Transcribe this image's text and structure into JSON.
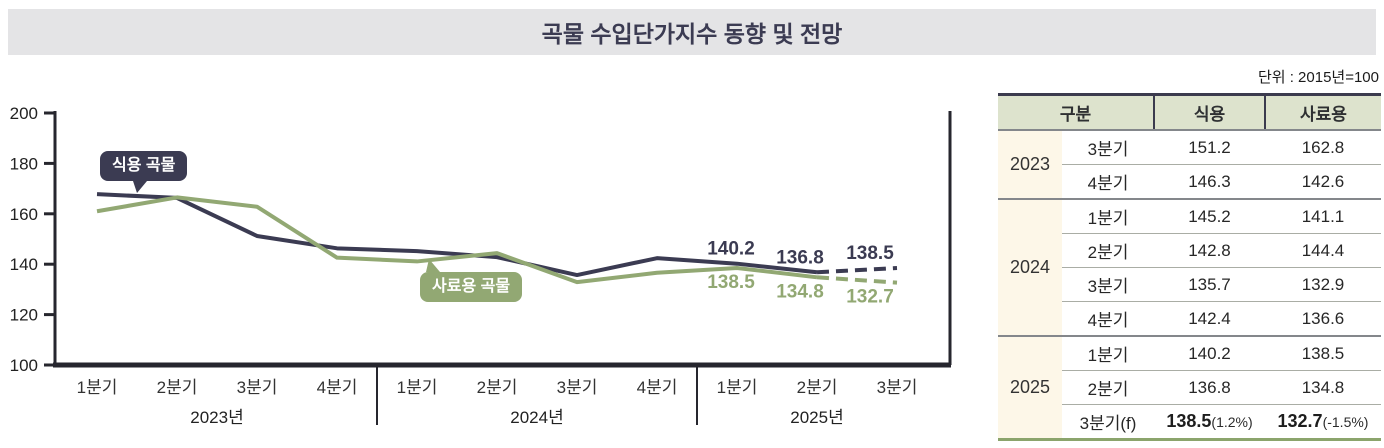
{
  "title": "곡물 수입단가지수 동향 및 전망",
  "colors": {
    "accent_dark": "#3b3b52",
    "accent_green": "#92a873",
    "title_bg": "#e4e4e6",
    "table_header_bg": "#dde3cd",
    "year_cell_bg": "#fdf7e8",
    "table_top_border": "#3b3b4e",
    "table_bottom_border": "#8ba46c",
    "axis": "#26262e"
  },
  "chart_data": {
    "type": "line",
    "title": "곡물 수입단가지수 동향 및 전망",
    "ylabel": "",
    "xlabel": "",
    "ylim": [
      100,
      200
    ],
    "yticks": [
      100,
      120,
      140,
      160,
      180,
      200
    ],
    "grid": false,
    "x_groups": [
      {
        "label": "2023년",
        "quarters": [
          "1분기",
          "2분기",
          "3분기",
          "4분기"
        ]
      },
      {
        "label": "2024년",
        "quarters": [
          "1분기",
          "2분기",
          "3분기",
          "4분기"
        ]
      },
      {
        "label": "2025년",
        "quarters": [
          "1분기",
          "2분기",
          "3분기"
        ]
      }
    ],
    "series": [
      {
        "name": "식용 곡물",
        "color": "#3b3b52",
        "values": [
          167.8,
          166.3,
          151.2,
          146.3,
          145.2,
          142.8,
          135.7,
          142.4,
          140.2,
          136.8,
          138.5
        ],
        "forecast_from_index": 9,
        "labeled_points": 3,
        "label_position": "above"
      },
      {
        "name": "사료용 곡물",
        "color": "#92a873",
        "values": [
          161.0,
          166.5,
          162.8,
          142.6,
          141.1,
          144.4,
          132.9,
          136.6,
          138.5,
          134.8,
          132.7
        ],
        "forecast_from_index": 9,
        "labeled_points": 3,
        "label_position": "below"
      }
    ]
  },
  "table": {
    "unit_label": "단위 : 2015년=100",
    "headers": {
      "group": "구분",
      "food": "식용",
      "feed": "사료용"
    },
    "groups": [
      {
        "year": "2023",
        "rows": [
          {
            "quarter": "3분기",
            "food": "151.2",
            "feed": "162.8"
          },
          {
            "quarter": "4분기",
            "food": "146.3",
            "feed": "142.6"
          }
        ]
      },
      {
        "year": "2024",
        "rows": [
          {
            "quarter": "1분기",
            "food": "145.2",
            "feed": "141.1"
          },
          {
            "quarter": "2분기",
            "food": "142.8",
            "feed": "144.4"
          },
          {
            "quarter": "3분기",
            "food": "135.7",
            "feed": "132.9"
          },
          {
            "quarter": "4분기",
            "food": "142.4",
            "feed": "136.6"
          }
        ]
      },
      {
        "year": "2025",
        "rows": [
          {
            "quarter": "1분기",
            "food": "140.2",
            "feed": "138.5"
          },
          {
            "quarter": "2분기",
            "food": "136.8",
            "feed": "134.8"
          },
          {
            "quarter": "3분기(f)",
            "food": "138.5",
            "food_note": "(1.2%)",
            "feed": "132.7",
            "feed_note": "(-1.5%)"
          }
        ]
      }
    ]
  }
}
